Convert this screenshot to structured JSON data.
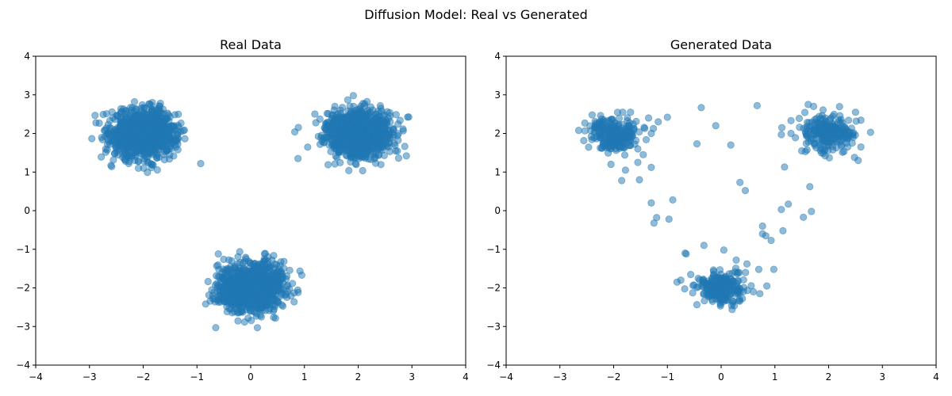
{
  "figure": {
    "title": "Diffusion Model: Real vs Generated",
    "point_color": "#1f77b4",
    "point_alpha": 0.5
  },
  "chart_data": [
    {
      "type": "scatter",
      "title": "Real Data",
      "xlabel": "",
      "ylabel": "",
      "xlim": [
        -4,
        4
      ],
      "ylim": [
        -4,
        4
      ],
      "xticks": [
        -4,
        -3,
        -2,
        -1,
        0,
        1,
        2,
        3,
        4
      ],
      "yticks": [
        -4,
        -3,
        -2,
        -1,
        0,
        1,
        2,
        3,
        4
      ],
      "xtick_labels": [
        "−4",
        "−3",
        "−2",
        "−1",
        "0",
        "1",
        "2",
        "3",
        "4"
      ],
      "ytick_labels": [
        "−4",
        "−3",
        "−2",
        "−1",
        "0",
        "1",
        "2",
        "3",
        "4"
      ],
      "grid": false,
      "clusters": [
        {
          "center": [
            -2,
            2
          ],
          "std": 0.3,
          "n": 1100
        },
        {
          "center": [
            2,
            2
          ],
          "std": 0.3,
          "n": 1100
        },
        {
          "center": [
            0,
            -2
          ],
          "std": 0.3,
          "n": 1100
        }
      ],
      "outliers": [
        [
          -0.93,
          1.22
        ],
        [
          0.88,
          1.35
        ],
        [
          0.82,
          2.04
        ],
        [
          -0.65,
          -3.03
        ],
        [
          0.95,
          -1.67
        ]
      ]
    },
    {
      "type": "scatter",
      "title": "Generated Data",
      "xlabel": "",
      "ylabel": "",
      "xlim": [
        -4,
        4
      ],
      "ylim": [
        -4,
        4
      ],
      "xticks": [
        -4,
        -3,
        -2,
        -1,
        0,
        1,
        2,
        3,
        4
      ],
      "yticks": [
        -4,
        -3,
        -2,
        -1,
        0,
        1,
        2,
        3,
        4
      ],
      "xtick_labels": [
        "−4",
        "−3",
        "−2",
        "−1",
        "0",
        "1",
        "2",
        "3",
        "4"
      ],
      "ytick_labels": [
        "−4",
        "−3",
        "−2",
        "−1",
        "0",
        "1",
        "2",
        "3",
        "4"
      ],
      "grid": false,
      "clusters": [
        {
          "center": [
            -2,
            2
          ],
          "std": 0.22,
          "n": 260
        },
        {
          "center": [
            2,
            2
          ],
          "std": 0.22,
          "n": 260
        },
        {
          "center": [
            0,
            -2
          ],
          "std": 0.2,
          "n": 260
        }
      ],
      "outliers": [
        [
          -0.37,
          2.67
        ],
        [
          0.67,
          2.72
        ],
        [
          -0.1,
          2.2
        ],
        [
          -0.45,
          1.73
        ],
        [
          0.18,
          1.7
        ],
        [
          -1.0,
          2.42
        ],
        [
          -1.35,
          2.4
        ],
        [
          -1.17,
          2.3
        ],
        [
          -1.3,
          2.0
        ],
        [
          -1.42,
          2.13
        ],
        [
          -1.55,
          1.6
        ],
        [
          -1.45,
          1.45
        ],
        [
          -1.55,
          1.25
        ],
        [
          -1.3,
          1.12
        ],
        [
          -1.78,
          1.05
        ],
        [
          -1.85,
          0.78
        ],
        [
          -1.52,
          0.8
        ],
        [
          -1.3,
          0.2
        ],
        [
          -0.9,
          0.28
        ],
        [
          -1.2,
          -0.18
        ],
        [
          -1.25,
          -0.32
        ],
        [
          -0.97,
          -0.22
        ],
        [
          0.35,
          0.73
        ],
        [
          0.45,
          0.52
        ],
        [
          -0.32,
          -0.9
        ],
        [
          -0.67,
          -1.1
        ],
        [
          -0.65,
          -1.12
        ],
        [
          -0.75,
          -1.8
        ],
        [
          -0.82,
          -1.85
        ],
        [
          0.77,
          -0.4
        ],
        [
          0.77,
          -0.6
        ],
        [
          0.83,
          -0.65
        ],
        [
          0.93,
          -0.77
        ],
        [
          1.15,
          -0.52
        ],
        [
          1.12,
          0.03
        ],
        [
          1.25,
          0.17
        ],
        [
          1.53,
          -0.17
        ],
        [
          1.68,
          -0.02
        ],
        [
          1.65,
          0.62
        ],
        [
          1.18,
          1.13
        ],
        [
          1.13,
          2.15
        ],
        [
          1.12,
          1.97
        ],
        [
          1.3,
          2.0
        ],
        [
          1.3,
          2.33
        ],
        [
          1.5,
          1.55
        ],
        [
          0.05,
          -1.02
        ],
        [
          0.28,
          -1.28
        ],
        [
          0.48,
          -1.38
        ],
        [
          0.7,
          -1.52
        ],
        [
          0.98,
          -1.52
        ],
        [
          0.85,
          -1.95
        ],
        [
          0.72,
          -2.15
        ],
        [
          0.6,
          -2.1
        ],
        [
          2.55,
          1.3
        ],
        [
          2.78,
          2.03
        ],
        [
          2.6,
          1.65
        ],
        [
          2.5,
          2.55
        ],
        [
          1.62,
          2.75
        ],
        [
          1.72,
          2.7
        ],
        [
          -2.65,
          2.08
        ],
        [
          -1.83,
          2.55
        ],
        [
          -2.05,
          1.2
        ],
        [
          -2.4,
          2.48
        ]
      ]
    }
  ]
}
